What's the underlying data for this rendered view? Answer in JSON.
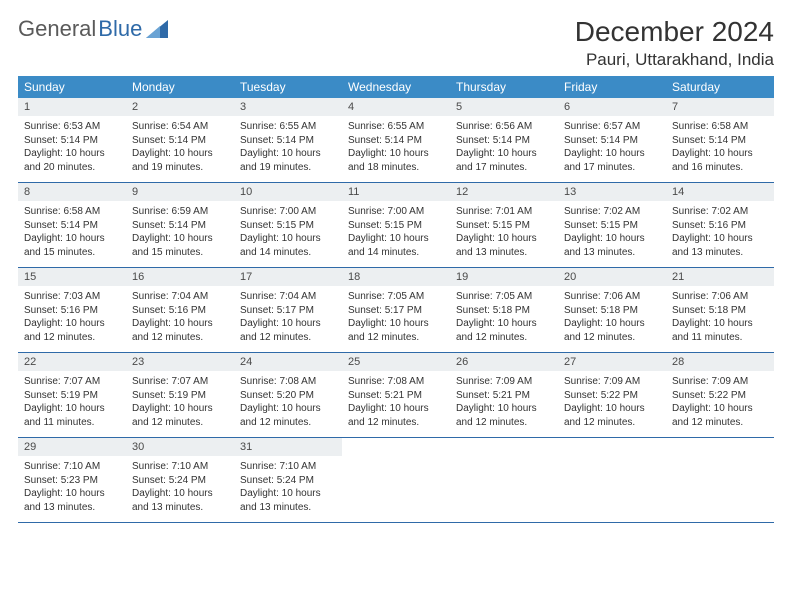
{
  "logo": {
    "text1": "General",
    "text2": "Blue"
  },
  "title": "December 2024",
  "location": "Pauri, Uttarakhand, India",
  "colors": {
    "header_bg": "#3b8bc6",
    "header_text": "#ffffff",
    "daynum_bg": "#eceff1",
    "border": "#2f6aa8",
    "body_text": "#333333"
  },
  "day_names": [
    "Sunday",
    "Monday",
    "Tuesday",
    "Wednesday",
    "Thursday",
    "Friday",
    "Saturday"
  ],
  "weeks": [
    [
      {
        "num": "1",
        "sunrise": "Sunrise: 6:53 AM",
        "sunset": "Sunset: 5:14 PM",
        "daylight": "Daylight: 10 hours and 20 minutes."
      },
      {
        "num": "2",
        "sunrise": "Sunrise: 6:54 AM",
        "sunset": "Sunset: 5:14 PM",
        "daylight": "Daylight: 10 hours and 19 minutes."
      },
      {
        "num": "3",
        "sunrise": "Sunrise: 6:55 AM",
        "sunset": "Sunset: 5:14 PM",
        "daylight": "Daylight: 10 hours and 19 minutes."
      },
      {
        "num": "4",
        "sunrise": "Sunrise: 6:55 AM",
        "sunset": "Sunset: 5:14 PM",
        "daylight": "Daylight: 10 hours and 18 minutes."
      },
      {
        "num": "5",
        "sunrise": "Sunrise: 6:56 AM",
        "sunset": "Sunset: 5:14 PM",
        "daylight": "Daylight: 10 hours and 17 minutes."
      },
      {
        "num": "6",
        "sunrise": "Sunrise: 6:57 AM",
        "sunset": "Sunset: 5:14 PM",
        "daylight": "Daylight: 10 hours and 17 minutes."
      },
      {
        "num": "7",
        "sunrise": "Sunrise: 6:58 AM",
        "sunset": "Sunset: 5:14 PM",
        "daylight": "Daylight: 10 hours and 16 minutes."
      }
    ],
    [
      {
        "num": "8",
        "sunrise": "Sunrise: 6:58 AM",
        "sunset": "Sunset: 5:14 PM",
        "daylight": "Daylight: 10 hours and 15 minutes."
      },
      {
        "num": "9",
        "sunrise": "Sunrise: 6:59 AM",
        "sunset": "Sunset: 5:14 PM",
        "daylight": "Daylight: 10 hours and 15 minutes."
      },
      {
        "num": "10",
        "sunrise": "Sunrise: 7:00 AM",
        "sunset": "Sunset: 5:15 PM",
        "daylight": "Daylight: 10 hours and 14 minutes."
      },
      {
        "num": "11",
        "sunrise": "Sunrise: 7:00 AM",
        "sunset": "Sunset: 5:15 PM",
        "daylight": "Daylight: 10 hours and 14 minutes."
      },
      {
        "num": "12",
        "sunrise": "Sunrise: 7:01 AM",
        "sunset": "Sunset: 5:15 PM",
        "daylight": "Daylight: 10 hours and 13 minutes."
      },
      {
        "num": "13",
        "sunrise": "Sunrise: 7:02 AM",
        "sunset": "Sunset: 5:15 PM",
        "daylight": "Daylight: 10 hours and 13 minutes."
      },
      {
        "num": "14",
        "sunrise": "Sunrise: 7:02 AM",
        "sunset": "Sunset: 5:16 PM",
        "daylight": "Daylight: 10 hours and 13 minutes."
      }
    ],
    [
      {
        "num": "15",
        "sunrise": "Sunrise: 7:03 AM",
        "sunset": "Sunset: 5:16 PM",
        "daylight": "Daylight: 10 hours and 12 minutes."
      },
      {
        "num": "16",
        "sunrise": "Sunrise: 7:04 AM",
        "sunset": "Sunset: 5:16 PM",
        "daylight": "Daylight: 10 hours and 12 minutes."
      },
      {
        "num": "17",
        "sunrise": "Sunrise: 7:04 AM",
        "sunset": "Sunset: 5:17 PM",
        "daylight": "Daylight: 10 hours and 12 minutes."
      },
      {
        "num": "18",
        "sunrise": "Sunrise: 7:05 AM",
        "sunset": "Sunset: 5:17 PM",
        "daylight": "Daylight: 10 hours and 12 minutes."
      },
      {
        "num": "19",
        "sunrise": "Sunrise: 7:05 AM",
        "sunset": "Sunset: 5:18 PM",
        "daylight": "Daylight: 10 hours and 12 minutes."
      },
      {
        "num": "20",
        "sunrise": "Sunrise: 7:06 AM",
        "sunset": "Sunset: 5:18 PM",
        "daylight": "Daylight: 10 hours and 12 minutes."
      },
      {
        "num": "21",
        "sunrise": "Sunrise: 7:06 AM",
        "sunset": "Sunset: 5:18 PM",
        "daylight": "Daylight: 10 hours and 11 minutes."
      }
    ],
    [
      {
        "num": "22",
        "sunrise": "Sunrise: 7:07 AM",
        "sunset": "Sunset: 5:19 PM",
        "daylight": "Daylight: 10 hours and 11 minutes."
      },
      {
        "num": "23",
        "sunrise": "Sunrise: 7:07 AM",
        "sunset": "Sunset: 5:19 PM",
        "daylight": "Daylight: 10 hours and 12 minutes."
      },
      {
        "num": "24",
        "sunrise": "Sunrise: 7:08 AM",
        "sunset": "Sunset: 5:20 PM",
        "daylight": "Daylight: 10 hours and 12 minutes."
      },
      {
        "num": "25",
        "sunrise": "Sunrise: 7:08 AM",
        "sunset": "Sunset: 5:21 PM",
        "daylight": "Daylight: 10 hours and 12 minutes."
      },
      {
        "num": "26",
        "sunrise": "Sunrise: 7:09 AM",
        "sunset": "Sunset: 5:21 PM",
        "daylight": "Daylight: 10 hours and 12 minutes."
      },
      {
        "num": "27",
        "sunrise": "Sunrise: 7:09 AM",
        "sunset": "Sunset: 5:22 PM",
        "daylight": "Daylight: 10 hours and 12 minutes."
      },
      {
        "num": "28",
        "sunrise": "Sunrise: 7:09 AM",
        "sunset": "Sunset: 5:22 PM",
        "daylight": "Daylight: 10 hours and 12 minutes."
      }
    ],
    [
      {
        "num": "29",
        "sunrise": "Sunrise: 7:10 AM",
        "sunset": "Sunset: 5:23 PM",
        "daylight": "Daylight: 10 hours and 13 minutes."
      },
      {
        "num": "30",
        "sunrise": "Sunrise: 7:10 AM",
        "sunset": "Sunset: 5:24 PM",
        "daylight": "Daylight: 10 hours and 13 minutes."
      },
      {
        "num": "31",
        "sunrise": "Sunrise: 7:10 AM",
        "sunset": "Sunset: 5:24 PM",
        "daylight": "Daylight: 10 hours and 13 minutes."
      },
      null,
      null,
      null,
      null
    ]
  ]
}
